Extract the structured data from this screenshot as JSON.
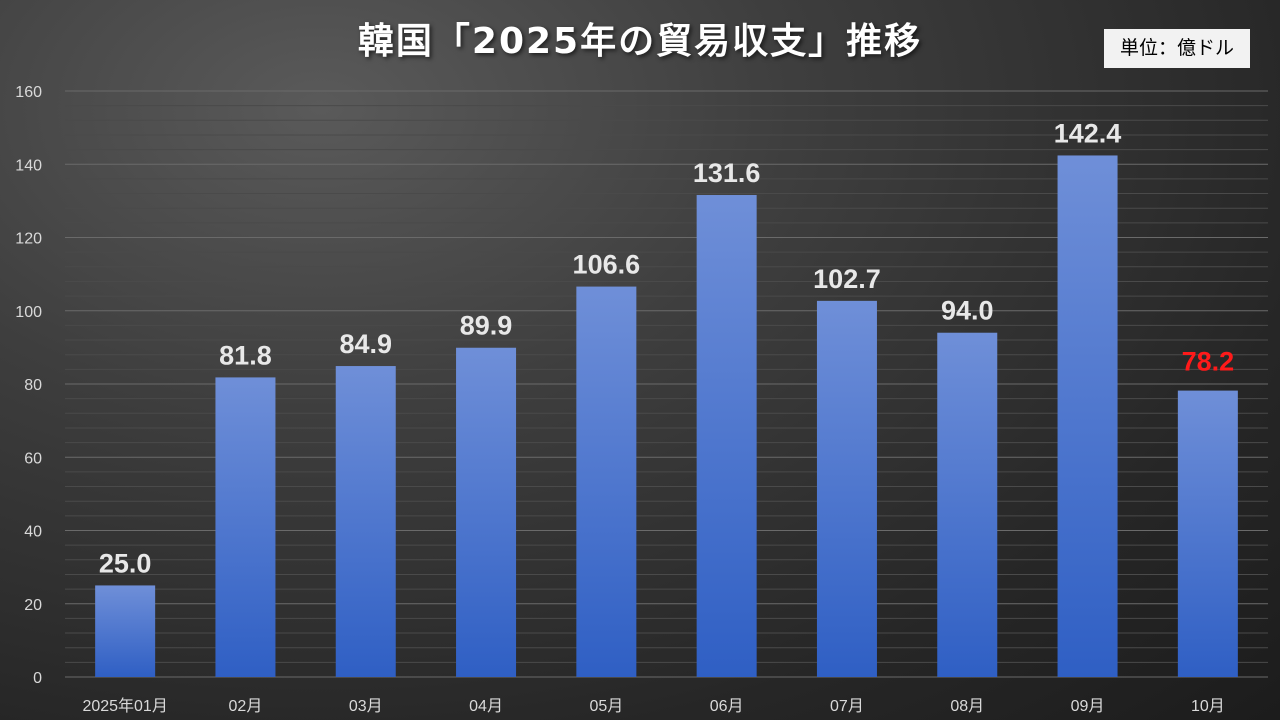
{
  "chart_data": {
    "type": "bar",
    "title": "韓国「2025年の貿易収支」推移",
    "unit_label": "単位：億ドル",
    "categories": [
      "2025年01月",
      "02月",
      "03月",
      "04月",
      "05月",
      "06月",
      "07月",
      "08月",
      "09月",
      "10月"
    ],
    "values": [
      25.0,
      81.8,
      84.9,
      89.9,
      106.6,
      131.6,
      102.7,
      94.0,
      142.4,
      78.2
    ],
    "value_labels": [
      "25.0",
      "81.8",
      "84.9",
      "89.9",
      "106.6",
      "131.6",
      "102.7",
      "94.0",
      "142.4",
      "78.2"
    ],
    "highlight_index": 9,
    "ylim": [
      0,
      160
    ],
    "yticks": [
      0,
      20,
      40,
      60,
      80,
      100,
      120,
      140,
      160
    ],
    "grid": true,
    "colors": {
      "bar_top": "#6f8fd8",
      "bar_bottom": "#2f5fc4",
      "label": "#e8e8e8",
      "highlight_label": "#ff1a1a",
      "grid": "#6a6a6a"
    }
  }
}
